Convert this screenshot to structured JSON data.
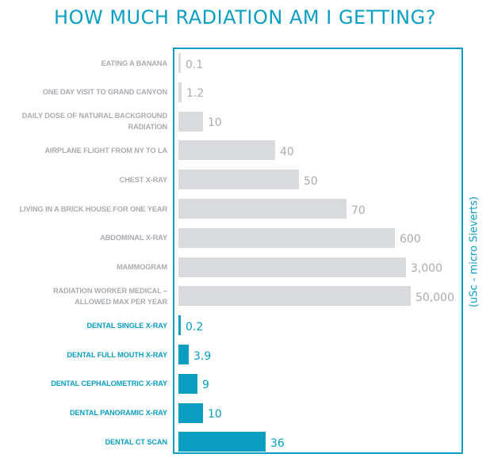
{
  "chart_data": {
    "type": "bar",
    "orientation": "horizontal",
    "title": "HOW MUCH RADIATION AM I GETTING?",
    "unit_label": "(uSc - micro Sieverts)",
    "xlabel": "",
    "ylabel": "",
    "grid": false,
    "legend": "none",
    "scale_note": "bar lengths are illustrative (non-linear), shown as fraction of the longest bar",
    "colors": {
      "general": "#d8dadd",
      "general_text": "#a8abb0",
      "dental": "#0a9dc2",
      "dental_text": "#0a9dc2",
      "frame": "#0b9ec3"
    },
    "categories": [
      "EATING A BANANA",
      "ONE DAY VISIT TO GRAND CANYON",
      "DAILY DOSE OF NATURAL BACKGROUND RADIATION",
      "AIRPLANE FLIGHT FROM NY TO LA",
      "CHEST X-RAY",
      "LIVING IN A BRICK HOUSE FOR ONE YEAR",
      "ABDOMINAL X-RAY",
      "MAMMOGRAM",
      "RADIATION WORKER MEDICAL – ALLOWED MAX PER YEAR",
      "DENTAL SINGLE X-RAY",
      "DENTAL FULL MOUTH X-RAY",
      "DENTAL CEPHALOMETRIC X-RAY",
      "DENTAL PANORAMIC X-RAY",
      "DENTAL CT SCAN"
    ],
    "bars": [
      {
        "label_lines": [
          "EATING A BANANA"
        ],
        "value": 0.1,
        "value_label": "0.1",
        "group": "general",
        "relative_length": 0.01
      },
      {
        "label_lines": [
          "ONE DAY VISIT TO GRAND CANYON"
        ],
        "value": 1.2,
        "value_label": "1.2",
        "group": "general",
        "relative_length": 0.014
      },
      {
        "label_lines": [
          "DAILY DOSE OF NATURAL BACKGROUND",
          "RADIATION"
        ],
        "value": 10,
        "value_label": "10",
        "group": "general",
        "relative_length": 0.106
      },
      {
        "label_lines": [
          "AIRPLANE FLIGHT FROM NY TO LA"
        ],
        "value": 40,
        "value_label": "40",
        "group": "general",
        "relative_length": 0.416
      },
      {
        "label_lines": [
          "CHEST X-RAY"
        ],
        "value": 50,
        "value_label": "50",
        "group": "general",
        "relative_length": 0.519
      },
      {
        "label_lines": [
          "LIVING IN A BRICK HOUSE FOR ONE YEAR"
        ],
        "value": 70,
        "value_label": "70",
        "group": "general",
        "relative_length": 0.724
      },
      {
        "label_lines": [
          "ABDOMINAL X-RAY"
        ],
        "value": 600,
        "value_label": "600",
        "group": "general",
        "relative_length": 0.932
      },
      {
        "label_lines": [
          "MAMMOGRAM"
        ],
        "value": 3000,
        "value_label": "3,000",
        "group": "general",
        "relative_length": 0.98
      },
      {
        "label_lines": [
          "RADIATION WORKER MEDICAL –",
          "ALLOWED MAX PER YEAR"
        ],
        "value": 50000,
        "value_label": "50,000",
        "group": "general",
        "relative_length": 1.0
      },
      {
        "label_lines": [
          "DENTAL SINGLE X-RAY"
        ],
        "value": 0.2,
        "value_label": "0.2",
        "group": "dental",
        "relative_length": 0.01
      },
      {
        "label_lines": [
          "DENTAL FULL MOUTH X-RAY"
        ],
        "value": 3.9,
        "value_label": "3.9",
        "group": "dental",
        "relative_length": 0.044
      },
      {
        "label_lines": [
          "DENTAL CEPHALOMETRIC X-RAY"
        ],
        "value": 9,
        "value_label": "9",
        "group": "dental",
        "relative_length": 0.082
      },
      {
        "label_lines": [
          "DENTAL PANORAMIC X-RAY"
        ],
        "value": 10,
        "value_label": "10",
        "group": "dental",
        "relative_length": 0.106
      },
      {
        "label_lines": [
          "DENTAL CT SCAN"
        ],
        "value": 36,
        "value_label": "36",
        "group": "dental",
        "relative_length": 0.375
      }
    ]
  }
}
